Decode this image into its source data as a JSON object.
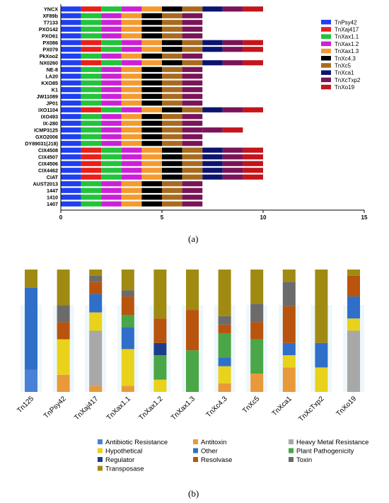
{
  "panel_a_label": "(a)",
  "panel_b_label": "(b)",
  "chart_data": [
    {
      "type": "bar",
      "orientation": "horizontal",
      "stacked": true,
      "xlim": [
        0,
        15
      ],
      "xticks": [
        "0",
        "5",
        "10",
        "15"
      ],
      "legend_position": "right",
      "segment_names": [
        "TnPsy42",
        "TnXaj417",
        "TnXax1.1",
        "TnXax1.2",
        "TnXax1.3",
        "TnXc4.3",
        "TnXc5",
        "TnXca1",
        "TnXcTxp2",
        "TnXo19"
      ],
      "segment_colors": [
        "#1f3ff0",
        "#e8201c",
        "#21c43a",
        "#cc20d8",
        "#f59a2e",
        "#000000",
        "#a86b1e",
        "#0c1470",
        "#7a1458",
        "#c3151b"
      ],
      "categories": [
        "YNCX",
        "XF89b",
        "T7133",
        "PXO142",
        "PXO61",
        "PX086",
        "PX079",
        "PkXoo2",
        "NX0260",
        "NE-8",
        "LA20",
        "KXO85",
        "K1",
        "JW11089",
        "JP01",
        "IXO1104",
        "IXO493",
        "IX-280",
        "ICMP3125",
        "GXO2006",
        "DY89031(J18)",
        "CIX4508",
        "CIX4507",
        "CIX4506",
        "CIX4462",
        "CIAT",
        "AUST2013",
        "1447",
        "1410",
        "1407"
      ],
      "rows": [
        {
          "label": "YNCX",
          "segments": [
            "TnPsy42",
            "TnXaj417",
            "TnXax1.1",
            "TnXax1.2",
            "TnXax1.3",
            "TnXc4.3",
            "TnXc5",
            "TnXca1",
            "TnXcTxp2",
            "TnXo19"
          ]
        },
        {
          "label": "XF89b",
          "segments": [
            "TnPsy42",
            "TnXax1.1",
            "TnXax1.2",
            "TnXax1.3",
            "TnXc4.3",
            "TnXc5",
            "TnXcTxp2"
          ]
        },
        {
          "label": "T7133",
          "segments": [
            "TnPsy42",
            "TnXax1.1",
            "TnXax1.2",
            "TnXax1.3",
            "TnXc4.3",
            "TnXc5",
            "TnXcTxp2"
          ]
        },
        {
          "label": "PXO142",
          "segments": [
            "TnPsy42",
            "TnXax1.1",
            "TnXax1.2",
            "TnXax1.3",
            "TnXc4.3",
            "TnXc5",
            "TnXcTxp2"
          ]
        },
        {
          "label": "PXO61",
          "segments": [
            "TnPsy42",
            "TnXax1.1",
            "TnXax1.2",
            "TnXax1.3",
            "TnXc4.3",
            "TnXc5",
            "TnXcTxp2"
          ]
        },
        {
          "label": "PX086",
          "segments": [
            "TnPsy42",
            "TnXaj417",
            "TnXax1.1",
            "TnXax1.2",
            "TnXax1.3",
            "TnXc4.3",
            "TnXc5",
            "TnXca1",
            "TnXcTxp2",
            "TnXo19"
          ]
        },
        {
          "label": "PX079",
          "segments": [
            "TnPsy42",
            "TnXaj417",
            "TnXax1.1",
            "TnXax1.2",
            "TnXax1.3",
            "TnXc4.3",
            "TnXc5",
            "TnXca1",
            "TnXcTxp2",
            "TnXo19"
          ]
        },
        {
          "label": "PkXoo2",
          "segments": [
            "TnPsy42",
            "TnXax1.1",
            "TnXax1.2",
            "TnXax1.3",
            "TnXc4.3",
            "TnXc5",
            "TnXcTxp2"
          ]
        },
        {
          "label": "NX0260",
          "segments": [
            "TnPsy42",
            "TnXaj417",
            "TnXax1.1",
            "TnXax1.2",
            "TnXax1.3",
            "TnXc4.3",
            "TnXc5",
            "TnXca1",
            "TnXcTxp2",
            "TnXo19"
          ]
        },
        {
          "label": "NE-8",
          "segments": [
            "TnPsy42",
            "TnXax1.1",
            "TnXax1.2",
            "TnXax1.3",
            "TnXc4.3",
            "TnXc5",
            "TnXcTxp2"
          ]
        },
        {
          "label": "LA20",
          "segments": [
            "TnPsy42",
            "TnXax1.1",
            "TnXax1.2",
            "TnXax1.3",
            "TnXc4.3",
            "TnXc5",
            "TnXcTxp2"
          ]
        },
        {
          "label": "KXO85",
          "segments": [
            "TnPsy42",
            "TnXax1.1",
            "TnXax1.2",
            "TnXax1.3",
            "TnXc4.3",
            "TnXc5",
            "TnXcTxp2"
          ]
        },
        {
          "label": "K1",
          "segments": [
            "TnPsy42",
            "TnXax1.1",
            "TnXax1.2",
            "TnXax1.3",
            "TnXc4.3",
            "TnXc5",
            "TnXcTxp2"
          ]
        },
        {
          "label": "JW11089",
          "segments": [
            "TnPsy42",
            "TnXax1.1",
            "TnXax1.2",
            "TnXax1.3",
            "TnXc4.3",
            "TnXc5",
            "TnXcTxp2"
          ]
        },
        {
          "label": "JP01",
          "segments": [
            "TnPsy42",
            "TnXax1.1",
            "TnXax1.2",
            "TnXax1.3",
            "TnXc4.3",
            "TnXc5",
            "TnXcTxp2"
          ]
        },
        {
          "label": "IXO1104",
          "segments": [
            "TnPsy42",
            "TnXaj417",
            "TnXax1.1",
            "TnXax1.2",
            "TnXax1.3",
            "TnXc4.3",
            "TnXc5",
            "TnXca1",
            "TnXcTxp2",
            "TnXo19"
          ]
        },
        {
          "label": "IXO493",
          "segments": [
            "TnPsy42",
            "TnXax1.1",
            "TnXax1.2",
            "TnXax1.3",
            "TnXc4.3",
            "TnXc5",
            "TnXcTxp2"
          ]
        },
        {
          "label": "IX-280",
          "segments": [
            "TnPsy42",
            "TnXax1.1",
            "TnXax1.2",
            "TnXax1.3",
            "TnXc4.3",
            "TnXc5",
            "TnXcTxp2"
          ]
        },
        {
          "label": "ICMP3125",
          "segments": [
            "TnPsy42",
            "TnXax1.1",
            "TnXax1.2",
            "TnXax1.3",
            "TnXc4.3",
            "TnXc5",
            "TnXcTxp2",
            "TnXcTxp2",
            "TnXo19"
          ]
        },
        {
          "label": "GXO2006",
          "segments": [
            "TnPsy42",
            "TnXax1.1",
            "TnXax1.2",
            "TnXax1.3",
            "TnXc4.3",
            "TnXc5",
            "TnXcTxp2"
          ]
        },
        {
          "label": "DY89031(J18)",
          "segments": [
            "TnPsy42",
            "TnXax1.1",
            "TnXax1.2",
            "TnXax1.3",
            "TnXc4.3",
            "TnXc5",
            "TnXcTxp2"
          ]
        },
        {
          "label": "CIX4508",
          "segments": [
            "TnPsy42",
            "TnXaj417",
            "TnXax1.1",
            "TnXax1.2",
            "TnXax1.3",
            "TnXc4.3",
            "TnXc5",
            "TnXca1",
            "TnXcTxp2",
            "TnXo19"
          ]
        },
        {
          "label": "CIX4507",
          "segments": [
            "TnPsy42",
            "TnXaj417",
            "TnXax1.1",
            "TnXax1.2",
            "TnXax1.3",
            "TnXc4.3",
            "TnXc5",
            "TnXca1",
            "TnXcTxp2",
            "TnXo19"
          ]
        },
        {
          "label": "CIX4506",
          "segments": [
            "TnPsy42",
            "TnXaj417",
            "TnXax1.1",
            "TnXax1.2",
            "TnXax1.3",
            "TnXc4.3",
            "TnXc5",
            "TnXca1",
            "TnXcTxp2",
            "TnXo19"
          ]
        },
        {
          "label": "CIX4462",
          "segments": [
            "TnPsy42",
            "TnXaj417",
            "TnXax1.1",
            "TnXax1.2",
            "TnXax1.3",
            "TnXc4.3",
            "TnXc5",
            "TnXca1",
            "TnXcTxp2",
            "TnXo19"
          ]
        },
        {
          "label": "CIAT",
          "segments": [
            "TnPsy42",
            "TnXaj417",
            "TnXax1.1",
            "TnXax1.2",
            "TnXax1.3",
            "TnXc4.3",
            "TnXc5",
            "TnXca1",
            "TnXcTxp2",
            "TnXo19"
          ]
        },
        {
          "label": "AUST2013",
          "segments": [
            "TnPsy42",
            "TnXax1.1",
            "TnXax1.2",
            "TnXax1.3",
            "TnXc4.3",
            "TnXc5",
            "TnXcTxp2"
          ]
        },
        {
          "label": "1447",
          "segments": [
            "TnPsy42",
            "TnXax1.1",
            "TnXax1.2",
            "TnXax1.3",
            "TnXc4.3",
            "TnXc5",
            "TnXcTxp2"
          ]
        },
        {
          "label": "1410",
          "segments": [
            "TnPsy42",
            "TnXax1.1",
            "TnXax1.2",
            "TnXax1.3",
            "TnXc4.3",
            "TnXc5",
            "TnXcTxp2"
          ]
        },
        {
          "label": "1407",
          "segments": [
            "TnPsy42",
            "TnXax1.1",
            "TnXax1.2",
            "TnXax1.3",
            "TnXc4.3",
            "TnXc5",
            "TnXcTxp2"
          ]
        }
      ]
    },
    {
      "type": "bar",
      "stacked": true,
      "normalized": true,
      "ylim": [
        0,
        100
      ],
      "legend_position": "bottom",
      "categories": [
        "Tn125",
        "TnPsy42",
        "TnXaj417",
        "TnXax1.1",
        "TnXax1.2",
        "TnXax1.3",
        "TnXc4.3",
        "TnXc5",
        "TnXca1",
        "TnXcTxp2",
        "TnXo19"
      ],
      "series": [
        {
          "name": "Antibiotic Resistance",
          "color": "#4a80d6",
          "values": [
            18,
            0,
            0,
            0,
            0,
            0,
            0,
            0,
            0,
            0,
            0
          ]
        },
        {
          "name": "Antitoxin",
          "color": "#e89a3a",
          "values": [
            0,
            14,
            5,
            5,
            0,
            0,
            7,
            15,
            20,
            0,
            0
          ]
        },
        {
          "name": "Heavy Metal Resistance",
          "color": "#a8a8a8",
          "values": [
            0,
            0,
            45,
            0,
            0,
            0,
            0,
            0,
            0,
            0,
            50
          ]
        },
        {
          "name": "Hypothetical",
          "color": "#e9d21c",
          "values": [
            0,
            29,
            15,
            30,
            10,
            0,
            14,
            0,
            10,
            20,
            10
          ]
        },
        {
          "name": "Other",
          "color": "#2f6fc9",
          "values": [
            67,
            0,
            15,
            18,
            0,
            0,
            7,
            0,
            10,
            20,
            18
          ]
        },
        {
          "name": "Plant Pathogenicity",
          "color": "#4aa646",
          "values": [
            0,
            0,
            0,
            10,
            20,
            34,
            20,
            28,
            0,
            0,
            0
          ]
        },
        {
          "name": "Regulator",
          "color": "#1c3e8a",
          "values": [
            0,
            0,
            0,
            0,
            10,
            0,
            0,
            0,
            0,
            0,
            0
          ]
        },
        {
          "name": "Resolvase",
          "color": "#b8540e",
          "values": [
            0,
            14,
            10,
            15,
            20,
            33,
            7,
            14,
            30,
            0,
            17
          ]
        },
        {
          "name": "Toxin",
          "color": "#6b6b6b",
          "values": [
            0,
            14,
            5,
            5,
            0,
            0,
            7,
            15,
            20,
            0,
            0
          ]
        },
        {
          "name": "Transposase",
          "color": "#a08a12",
          "values": [
            15,
            29,
            5,
            17,
            40,
            33,
            38,
            28,
            10,
            60,
            5
          ]
        }
      ]
    }
  ]
}
